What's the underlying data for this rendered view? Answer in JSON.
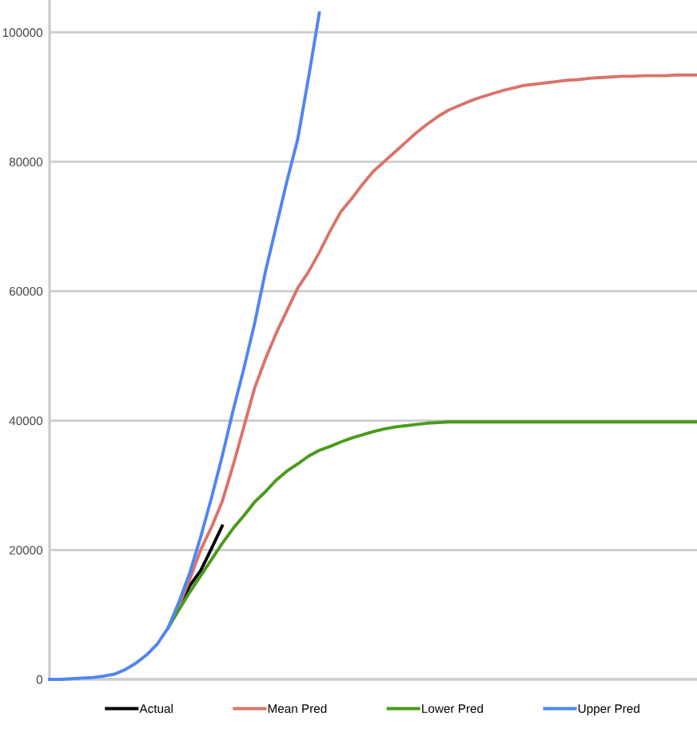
{
  "chart_data": {
    "type": "line",
    "categories": [
      null,
      null,
      null,
      null,
      null,
      null,
      null,
      null,
      null,
      null,
      null,
      null,
      null,
      null,
      null,
      null,
      null,
      null,
      null,
      null,
      null,
      null,
      null,
      null,
      null,
      null,
      null,
      null,
      null,
      null,
      null,
      null,
      null,
      null,
      null,
      null,
      null,
      null,
      null,
      null,
      null,
      null,
      null,
      null,
      null,
      null,
      null,
      null,
      null,
      null,
      null,
      null,
      null,
      null,
      null,
      null,
      null,
      null,
      null,
      null,
      null
    ],
    "series": [
      {
        "name": "Actual",
        "color": "#000000",
        "values": [
          null,
          null,
          null,
          null,
          null,
          null,
          null,
          null,
          null,
          null,
          null,
          null,
          11000,
          14500,
          16800,
          20200,
          23700,
          null,
          null,
          null,
          null,
          null,
          null,
          null,
          null,
          null,
          null,
          null,
          null,
          null,
          null,
          null,
          null,
          null,
          null,
          null,
          null,
          null,
          null,
          null,
          null,
          null,
          null,
          null,
          null,
          null,
          null,
          null,
          null,
          null,
          null,
          null,
          null,
          null,
          null,
          null,
          null,
          null,
          null,
          null,
          null
        ]
      },
      {
        "name": "Mean Pred",
        "color": "#d9746a",
        "values": [
          null,
          null,
          null,
          null,
          null,
          null,
          null,
          null,
          null,
          null,
          null,
          8000,
          11500,
          15500,
          20000,
          23500,
          27500,
          33000,
          39000,
          45000,
          49500,
          53500,
          57000,
          60500,
          63000,
          66000,
          69300,
          72300,
          74300,
          76500,
          78500,
          80000,
          81500,
          83000,
          84500,
          85800,
          87000,
          88000,
          88700,
          89400,
          90000,
          90500,
          91000,
          91400,
          91800,
          92000,
          92200,
          92400,
          92600,
          92700,
          92900,
          93000,
          93100,
          93200,
          93200,
          93300,
          93300,
          93300,
          93400,
          93400,
          93400
        ]
      },
      {
        "name": "Lower Pred",
        "color": "#4a9a1c",
        "values": [
          null,
          null,
          null,
          null,
          null,
          null,
          null,
          null,
          null,
          null,
          null,
          8000,
          10800,
          13500,
          16000,
          18500,
          21000,
          23300,
          25300,
          27400,
          29000,
          30800,
          32200,
          33300,
          34500,
          35400,
          36000,
          36700,
          37300,
          37800,
          38300,
          38700,
          39000,
          39200,
          39400,
          39600,
          39700,
          39800,
          39800,
          39800,
          39800,
          39800,
          39800,
          39800,
          39800,
          39800,
          39800,
          39800,
          39800,
          39800,
          39800,
          39800,
          39800,
          39800,
          39800,
          39800,
          39800,
          39800,
          39800,
          39800,
          39800
        ]
      },
      {
        "name": "Upper Pred",
        "color": "#4f86f0",
        "values": [
          0,
          0,
          100,
          200,
          300,
          500,
          800,
          1500,
          2500,
          3800,
          5500,
          8000,
          12000,
          16500,
          22000,
          28000,
          34500,
          41500,
          48000,
          55000,
          63000,
          70000,
          77000,
          83500,
          93000,
          103000,
          null,
          null,
          null,
          null,
          null,
          null,
          null,
          null,
          null,
          null,
          null,
          null,
          null,
          null,
          null,
          null,
          null,
          null,
          null,
          null,
          null,
          null,
          null,
          null,
          null,
          null,
          null,
          null,
          null,
          null,
          null,
          null,
          null,
          null,
          null
        ]
      }
    ],
    "ylim": [
      0,
      105000
    ],
    "yticks": [
      0,
      20000,
      40000,
      60000,
      80000,
      100000
    ],
    "grid": "y",
    "legend": "bottom",
    "marker": "none",
    "line_style": "solid"
  }
}
